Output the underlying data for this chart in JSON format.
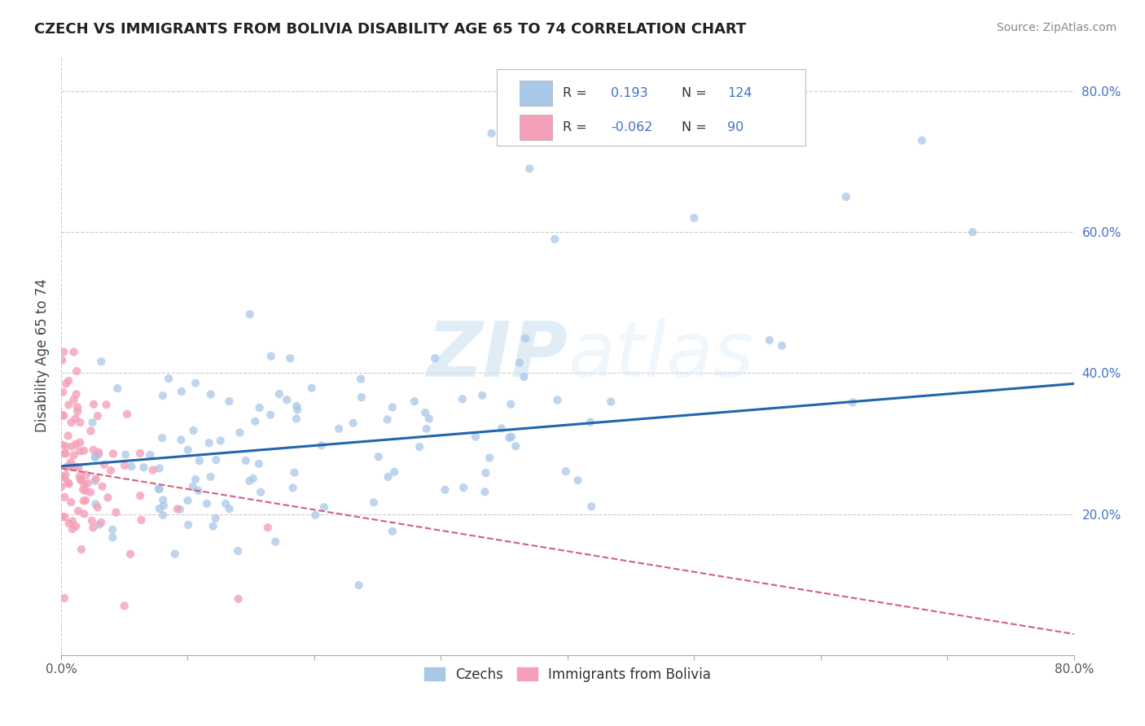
{
  "title": "CZECH VS IMMIGRANTS FROM BOLIVIA DISABILITY AGE 65 TO 74 CORRELATION CHART",
  "source": "Source: ZipAtlas.com",
  "ylabel": "Disability Age 65 to 74",
  "xlim": [
    0.0,
    0.8
  ],
  "ylim": [
    0.0,
    0.85
  ],
  "xtick_positions": [
    0.0,
    0.1,
    0.2,
    0.3,
    0.4,
    0.5,
    0.6,
    0.7,
    0.8
  ],
  "xticklabels": [
    "0.0%",
    "",
    "",
    "",
    "",
    "",
    "",
    "",
    "80.0%"
  ],
  "ytick_positions": [
    0.2,
    0.4,
    0.6,
    0.8
  ],
  "ytick_labels": [
    "20.0%",
    "40.0%",
    "60.0%",
    "80.0%"
  ],
  "blue_color": "#a8c8e8",
  "pink_color": "#f4a0b8",
  "blue_line_color": "#2166ac",
  "pink_line_color": "#d06080",
  "grid_color": "#cccccc",
  "watermark": "ZIPatlas",
  "blue_line_x0": 0.0,
  "blue_line_y0": 0.268,
  "blue_line_x1": 0.8,
  "blue_line_y1": 0.385,
  "pink_line_x0": 0.0,
  "pink_line_y0": 0.265,
  "pink_line_x1": 0.8,
  "pink_line_y1": 0.03
}
